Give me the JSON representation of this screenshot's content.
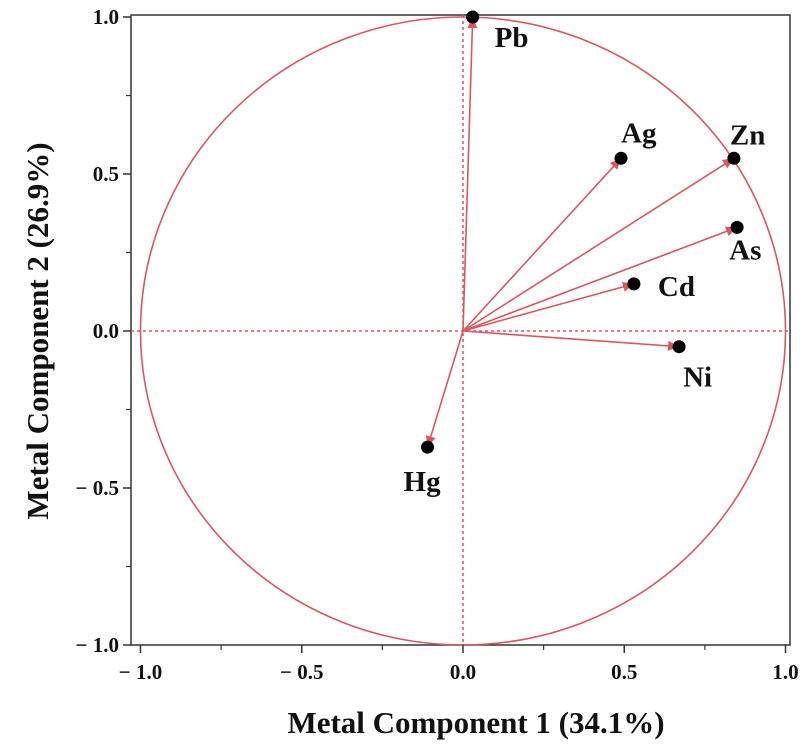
{
  "chart_data": {
    "type": "scatter",
    "subtype": "pca-loading-plot",
    "title": "",
    "xlabel": "Metal Component 1 (34.1%)",
    "ylabel": "Metal Component 2 (26.9%)",
    "xlim": [
      -1.0,
      1.0
    ],
    "ylim": [
      -1.0,
      1.0
    ],
    "x_ticks": [
      {
        "value": -1.0,
        "label": "− 1.0"
      },
      {
        "value": -0.5,
        "label": "− 0.5"
      },
      {
        "value": 0.0,
        "label": "0.0"
      },
      {
        "value": 0.5,
        "label": "0.5"
      },
      {
        "value": 1.0,
        "label": "1.0"
      }
    ],
    "y_ticks": [
      {
        "value": 1.0,
        "label": "1.0"
      },
      {
        "value": 0.5,
        "label": "0.5"
      },
      {
        "value": 0.0,
        "label": "0.0"
      },
      {
        "value": -0.5,
        "label": "− 0.5"
      },
      {
        "value": -1.0,
        "label": "− 1.0"
      }
    ],
    "points": [
      {
        "label": "Pb",
        "x": 0.03,
        "y": 1.0
      },
      {
        "label": "Ag",
        "x": 0.49,
        "y": 0.55
      },
      {
        "label": "Zn",
        "x": 0.84,
        "y": 0.55
      },
      {
        "label": "As",
        "x": 0.85,
        "y": 0.33
      },
      {
        "label": "Cd",
        "x": 0.53,
        "y": 0.15
      },
      {
        "label": "Ni",
        "x": 0.67,
        "y": -0.05
      },
      {
        "label": "Hg",
        "x": -0.11,
        "y": -0.37
      }
    ],
    "unit_circle": true,
    "reference_lines": [
      0.0
    ],
    "colors": {
      "line": "#d9575f",
      "point": "#000000",
      "axis": "#333333"
    },
    "grid": false,
    "legend": "none"
  }
}
